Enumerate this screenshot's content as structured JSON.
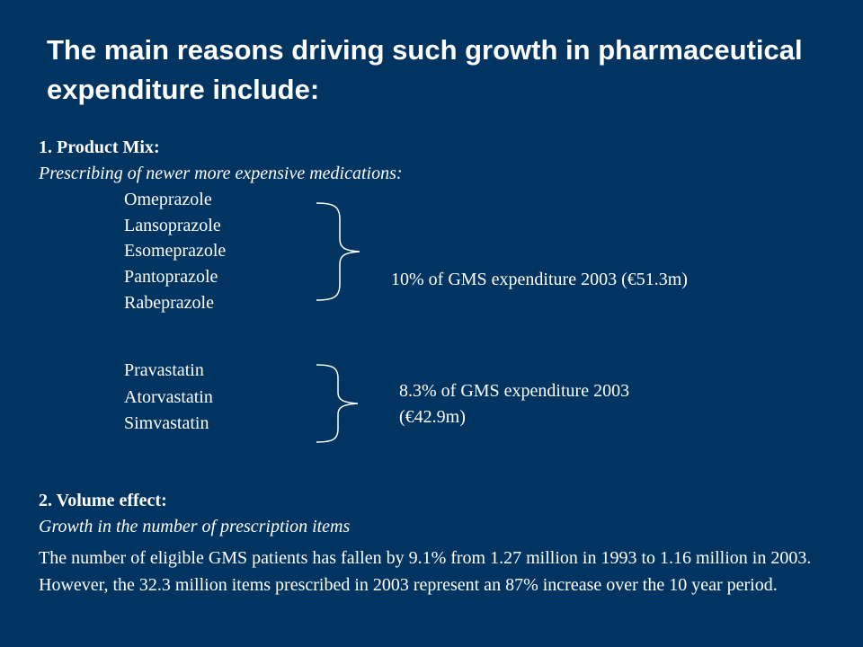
{
  "slide": {
    "title": "The main reasons driving such growth in pharmaceutical expenditure include:",
    "section1": {
      "heading": "1. Product Mix:",
      "subheading": "Prescribing of newer more expensive medications:",
      "group_ppi": {
        "drugs": [
          "Omeprazole",
          "Lansoprazole",
          "Esomeprazole",
          "Pantoprazole",
          "Rabeprazole"
        ],
        "note": "10% of GMS expenditure 2003 (€51.3m)"
      },
      "group_statins": {
        "drugs": [
          "Pravastatin",
          "Atorvastatin",
          "Simvastatin"
        ],
        "note_line1": "8.3% of GMS expenditure 2003",
        "note_line2": "(€42.9m)"
      }
    },
    "section2": {
      "heading": "2. Volume effect:",
      "subheading": "Growth in the number of prescription items",
      "paragraph": "The number of eligible GMS patients has fallen by 9.1% from 1.27 million in 1993 to 1.16 million in 2003. However, the 32.3 million items prescribed in 2003 represent an 87% increase over the 10 year period."
    }
  }
}
